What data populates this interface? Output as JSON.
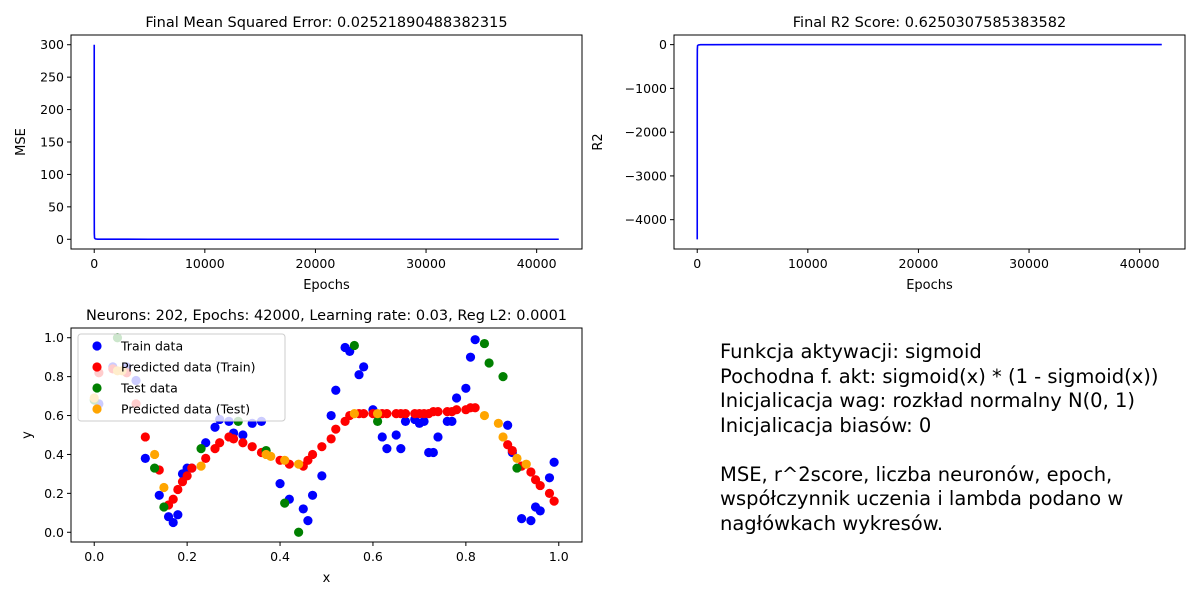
{
  "chart_data": [
    {
      "type": "line",
      "title": "Final Mean Squared Error: 0.02521890488382315",
      "xlabel": "Epochs",
      "ylabel": "MSE",
      "xlim": [
        -2100,
        44100
      ],
      "ylim": [
        -15,
        315
      ],
      "xticks": [
        0,
        10000,
        20000,
        30000,
        40000
      ],
      "yticks": [
        0,
        50,
        100,
        150,
        200,
        250,
        300
      ],
      "grid": false,
      "series": [
        {
          "color": "#0000ff",
          "x": [
            0,
            1,
            2,
            5,
            10,
            30,
            100,
            300,
            1000,
            5000,
            20000,
            42000
          ],
          "y": [
            300,
            230,
            100,
            30,
            8,
            2,
            0.6,
            0.2,
            0.08,
            0.04,
            0.03,
            0.025
          ]
        }
      ]
    },
    {
      "type": "line",
      "title": "Final R2 Score: 0.6250307585383582",
      "xlabel": "Epochs",
      "ylabel": "R2",
      "xlim": [
        -2100,
        44100
      ],
      "ylim": [
        -4670,
        220
      ],
      "xticks": [
        0,
        10000,
        20000,
        30000,
        40000
      ],
      "yticks": [
        -4000,
        -3000,
        -2000,
        -1000,
        0
      ],
      "grid": false,
      "series": [
        {
          "color": "#0000ff",
          "x": [
            0,
            1,
            2,
            5,
            10,
            30,
            100,
            300,
            1000,
            5000,
            20000,
            42000
          ],
          "y": [
            -4450,
            -3400,
            -1400,
            -400,
            -110,
            -25,
            -8,
            -2,
            -0.3,
            0.4,
            0.6,
            0.625
          ]
        }
      ]
    },
    {
      "type": "scatter",
      "title": "Neurons: 202, Epochs: 42000, Learning rate: 0.03, Reg L2: 0.0001",
      "xlabel": "x",
      "ylabel": "y",
      "xlim": [
        -0.05,
        1.05
      ],
      "ylim": [
        -0.05,
        1.05
      ],
      "xticks": [
        0.0,
        0.2,
        0.4,
        0.6,
        0.8,
        1.0
      ],
      "yticks": [
        0.0,
        0.2,
        0.4,
        0.6,
        0.8,
        1.0
      ],
      "legend_position": "upper-left",
      "grid": false,
      "series": [
        {
          "name": "Train data",
          "color": "#0000ff",
          "x": [
            0.01,
            0.04,
            0.07,
            0.09,
            0.11,
            0.14,
            0.16,
            0.17,
            0.18,
            0.19,
            0.2,
            0.21,
            0.24,
            0.26,
            0.27,
            0.29,
            0.3,
            0.32,
            0.34,
            0.36,
            0.4,
            0.42,
            0.45,
            0.46,
            0.47,
            0.49,
            0.51,
            0.52,
            0.54,
            0.55,
            0.57,
            0.58,
            0.6,
            0.62,
            0.63,
            0.65,
            0.66,
            0.67,
            0.69,
            0.7,
            0.71,
            0.72,
            0.73,
            0.74,
            0.76,
            0.77,
            0.78,
            0.8,
            0.81,
            0.82,
            0.89,
            0.9,
            0.92,
            0.94,
            0.95,
            0.96,
            0.98,
            0.99
          ],
          "y": [
            0.66,
            0.85,
            0.85,
            0.78,
            0.38,
            0.19,
            0.08,
            0.05,
            0.09,
            0.3,
            0.33,
            0.33,
            0.46,
            0.54,
            0.58,
            0.57,
            0.51,
            0.5,
            0.56,
            0.57,
            0.25,
            0.17,
            0.12,
            0.06,
            0.19,
            0.29,
            0.6,
            0.73,
            0.95,
            0.93,
            0.81,
            0.85,
            0.63,
            0.49,
            0.43,
            0.5,
            0.43,
            0.57,
            0.58,
            0.56,
            0.57,
            0.41,
            0.41,
            0.49,
            0.57,
            0.57,
            0.69,
            0.74,
            0.9,
            0.99,
            0.55,
            0.41,
            0.07,
            0.06,
            0.13,
            0.11,
            0.28,
            0.36
          ]
        },
        {
          "name": "Predicted data (Train)",
          "color": "#ff0000",
          "x": [
            0.01,
            0.04,
            0.07,
            0.09,
            0.11,
            0.14,
            0.16,
            0.17,
            0.18,
            0.19,
            0.2,
            0.21,
            0.24,
            0.26,
            0.27,
            0.29,
            0.3,
            0.32,
            0.34,
            0.36,
            0.4,
            0.42,
            0.45,
            0.46,
            0.47,
            0.49,
            0.51,
            0.52,
            0.54,
            0.55,
            0.57,
            0.58,
            0.6,
            0.62,
            0.63,
            0.65,
            0.66,
            0.67,
            0.69,
            0.7,
            0.71,
            0.72,
            0.73,
            0.74,
            0.76,
            0.77,
            0.78,
            0.8,
            0.81,
            0.82,
            0.89,
            0.9,
            0.92,
            0.94,
            0.95,
            0.96,
            0.98,
            0.99
          ],
          "y": [
            0.82,
            0.84,
            0.82,
            0.66,
            0.49,
            0.32,
            0.14,
            0.17,
            0.22,
            0.26,
            0.29,
            0.33,
            0.38,
            0.43,
            0.46,
            0.49,
            0.48,
            0.46,
            0.44,
            0.41,
            0.37,
            0.35,
            0.34,
            0.37,
            0.4,
            0.44,
            0.48,
            0.53,
            0.57,
            0.6,
            0.61,
            0.61,
            0.61,
            0.61,
            0.61,
            0.61,
            0.61,
            0.61,
            0.61,
            0.61,
            0.61,
            0.61,
            0.62,
            0.62,
            0.62,
            0.62,
            0.63,
            0.63,
            0.64,
            0.64,
            0.45,
            0.42,
            0.34,
            0.31,
            0.27,
            0.24,
            0.2,
            0.16
          ]
        },
        {
          "name": "Test data",
          "color": "#008000",
          "x": [
            0.0,
            0.05,
            0.13,
            0.15,
            0.23,
            0.31,
            0.37,
            0.41,
            0.44,
            0.56,
            0.61,
            0.84,
            0.85,
            0.88,
            0.91
          ],
          "y": [
            0.68,
            1.0,
            0.33,
            0.13,
            0.43,
            0.57,
            0.42,
            0.15,
            0.0,
            0.96,
            0.57,
            0.97,
            0.87,
            0.8,
            0.33
          ]
        },
        {
          "name": "Predicted data (Test)",
          "color": "#ffa500",
          "x": [
            0.0,
            0.05,
            0.06,
            0.13,
            0.15,
            0.23,
            0.37,
            0.38,
            0.41,
            0.44,
            0.56,
            0.61,
            0.84,
            0.87,
            0.88,
            0.91,
            0.93
          ],
          "y": [
            0.69,
            0.83,
            0.83,
            0.4,
            0.23,
            0.34,
            0.4,
            0.39,
            0.37,
            0.35,
            0.61,
            0.61,
            0.6,
            0.56,
            0.49,
            0.38,
            0.35
          ]
        }
      ]
    }
  ],
  "notes": {
    "line1": "Funkcja aktywacji: sigmoid",
    "line2": "Pochodna f. akt: sigmoid(x) * (1 - sigmoid(x))",
    "line3": "Inicjalicacja wag: rozkład normalny N(0, 1)",
    "line4": "Inicjalicacja biasów: 0",
    "line5": "MSE, r^2score, liczba neuronów, epoch,",
    "line6": "współczynnik uczenia i lambda podano w",
    "line7": "nagłówkach wykresów."
  }
}
